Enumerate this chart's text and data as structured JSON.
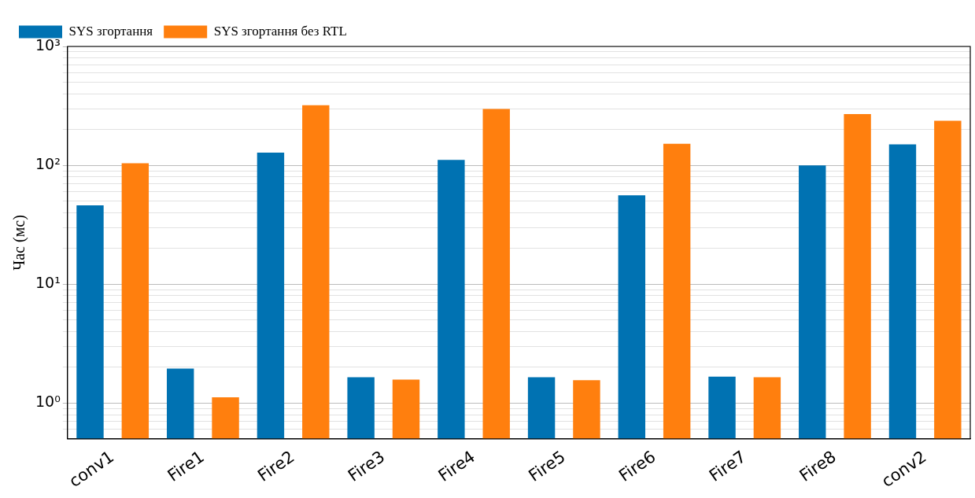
{
  "chart_data": {
    "type": "bar",
    "ylabel": "Час (мс)",
    "log": true,
    "grid": "y",
    "legend": "top left",
    "categories": [
      "conv1",
      "Fire1",
      "Fire2",
      "Fire3",
      "Fire4",
      "Fire5",
      "Fire6",
      "Fire7",
      "Fire8",
      "conv2"
    ],
    "series": [
      {
        "name": "SYS згортання",
        "color": "#0072b2",
        "values": [
          46,
          1.95,
          128,
          1.65,
          111,
          1.65,
          56,
          1.67,
          100,
          150
        ]
      },
      {
        "name": "SYS згортання без RTL",
        "color": "#ff7f0e",
        "values": [
          104,
          1.12,
          320,
          1.58,
          298,
          1.56,
          152,
          1.65,
          270,
          237
        ]
      }
    ],
    "ylim": [
      0.5,
      1000
    ],
    "yticks": [
      {
        "value": 0.6,
        "label": null
      },
      {
        "value": 0.7,
        "label": null
      },
      {
        "value": 0.8,
        "label": null
      },
      {
        "value": 0.9,
        "label": null
      },
      {
        "value": 1,
        "label": "10⁰"
      },
      {
        "value": 2,
        "label": null
      },
      {
        "value": 3,
        "label": null
      },
      {
        "value": 4,
        "label": null
      },
      {
        "value": 5,
        "label": null
      },
      {
        "value": 6,
        "label": null
      },
      {
        "value": 7,
        "label": null
      },
      {
        "value": 8,
        "label": null
      },
      {
        "value": 9,
        "label": null
      },
      {
        "value": 10,
        "label": "10¹"
      },
      {
        "value": 20,
        "label": null
      },
      {
        "value": 30,
        "label": null
      },
      {
        "value": 40,
        "label": null
      },
      {
        "value": 50,
        "label": null
      },
      {
        "value": 60,
        "label": null
      },
      {
        "value": 70,
        "label": null
      },
      {
        "value": 80,
        "label": null
      },
      {
        "value": 90,
        "label": null
      },
      {
        "value": 100,
        "label": "10²"
      },
      {
        "value": 200,
        "label": null
      },
      {
        "value": 300,
        "label": null
      },
      {
        "value": 400,
        "label": null
      },
      {
        "value": 500,
        "label": null
      },
      {
        "value": 600,
        "label": null
      },
      {
        "value": 700,
        "label": null
      },
      {
        "value": 800,
        "label": null
      },
      {
        "value": 900,
        "label": null
      },
      {
        "value": 1000,
        "label": "10³"
      }
    ]
  }
}
